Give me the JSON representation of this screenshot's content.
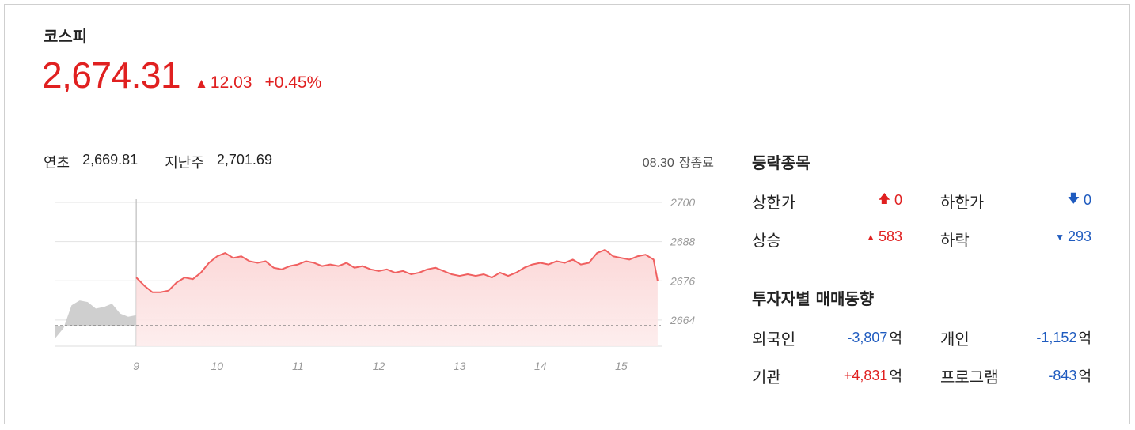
{
  "index": {
    "name": "코스피",
    "price": "2,674.31",
    "change": "12.03",
    "change_pct": "+0.45%",
    "up_color": "#e02020",
    "down_color": "#1f5bbf"
  },
  "refs": {
    "year_start_label": "연초",
    "year_start_value": "2,669.81",
    "last_week_label": "지난주",
    "last_week_value": "2,701.69",
    "close_date": "08.30",
    "close_status": "장종료"
  },
  "breadth": {
    "title": "등락종목",
    "upper_limit_label": "상한가",
    "upper_limit_value": "0",
    "lower_limit_label": "하한가",
    "lower_limit_value": "0",
    "rise_label": "상승",
    "rise_value": "583",
    "fall_label": "하락",
    "fall_value": "293"
  },
  "investors": {
    "title": "투자자별 매매동향",
    "unit": "억",
    "foreign_label": "외국인",
    "foreign_value": "-3,807",
    "individual_label": "개인",
    "individual_value": "-1,152",
    "institution_label": "기관",
    "institution_value": "+4,831",
    "program_label": "프로그램",
    "program_value": "-843"
  },
  "chart_data": {
    "type": "area",
    "y_ticks": [
      "2700",
      "2688",
      "2676",
      "2664"
    ],
    "ylim": [
      2656,
      2700
    ],
    "x_ticks": [
      "9",
      "10",
      "11",
      "12",
      "13",
      "14",
      "15"
    ],
    "xlim": [
      8.0,
      15.5
    ],
    "previous_close": 2662.28,
    "grid": true,
    "series": [
      {
        "color": "#cccccc",
        "x": [
          8.0,
          8.1,
          8.2,
          8.3,
          8.4,
          8.5,
          8.6,
          8.7,
          8.8,
          8.9,
          9.0
        ],
        "y": [
          2658.5,
          2661.5,
          2668.5,
          2670.0,
          2669.5,
          2667.5,
          2668.0,
          2669.0,
          2666.0,
          2665.0,
          2665.5
        ]
      },
      {
        "color": "#f06060",
        "x": [
          9.0,
          9.1,
          9.2,
          9.3,
          9.4,
          9.5,
          9.6,
          9.7,
          9.8,
          9.9,
          10.0,
          10.1,
          10.2,
          10.3,
          10.4,
          10.5,
          10.6,
          10.7,
          10.8,
          10.9,
          11.0,
          11.1,
          11.2,
          11.3,
          11.4,
          11.5,
          11.6,
          11.7,
          11.8,
          11.9,
          12.0,
          12.1,
          12.2,
          12.3,
          12.4,
          12.5,
          12.6,
          12.7,
          12.8,
          12.9,
          13.0,
          13.1,
          13.2,
          13.3,
          13.4,
          13.5,
          13.6,
          13.7,
          13.8,
          13.9,
          14.0,
          14.1,
          14.2,
          14.3,
          14.4,
          14.5,
          14.6,
          14.7,
          14.8,
          14.9,
          15.0,
          15.1,
          15.2,
          15.3,
          15.4,
          15.45
        ],
        "y": [
          2677.0,
          2674.5,
          2672.5,
          2672.5,
          2673.0,
          2675.5,
          2677.0,
          2676.5,
          2678.5,
          2681.5,
          2683.5,
          2684.5,
          2683.0,
          2683.5,
          2682.0,
          2681.5,
          2682.0,
          2680.0,
          2679.5,
          2680.5,
          2681.0,
          2682.0,
          2681.5,
          2680.5,
          2681.0,
          2680.5,
          2681.5,
          2680.0,
          2680.5,
          2679.5,
          2679.0,
          2679.5,
          2678.5,
          2679.0,
          2678.0,
          2678.5,
          2679.5,
          2680.0,
          2679.0,
          2678.0,
          2677.5,
          2678.0,
          2677.5,
          2678.0,
          2677.0,
          2678.5,
          2677.5,
          2678.5,
          2680.0,
          2681.0,
          2681.5,
          2681.0,
          2682.0,
          2681.5,
          2682.5,
          2681.0,
          2681.5,
          2684.5,
          2685.5,
          2683.5,
          2683.0,
          2682.5,
          2683.5,
          2684.0,
          2682.5,
          2676.0
        ]
      }
    ]
  }
}
